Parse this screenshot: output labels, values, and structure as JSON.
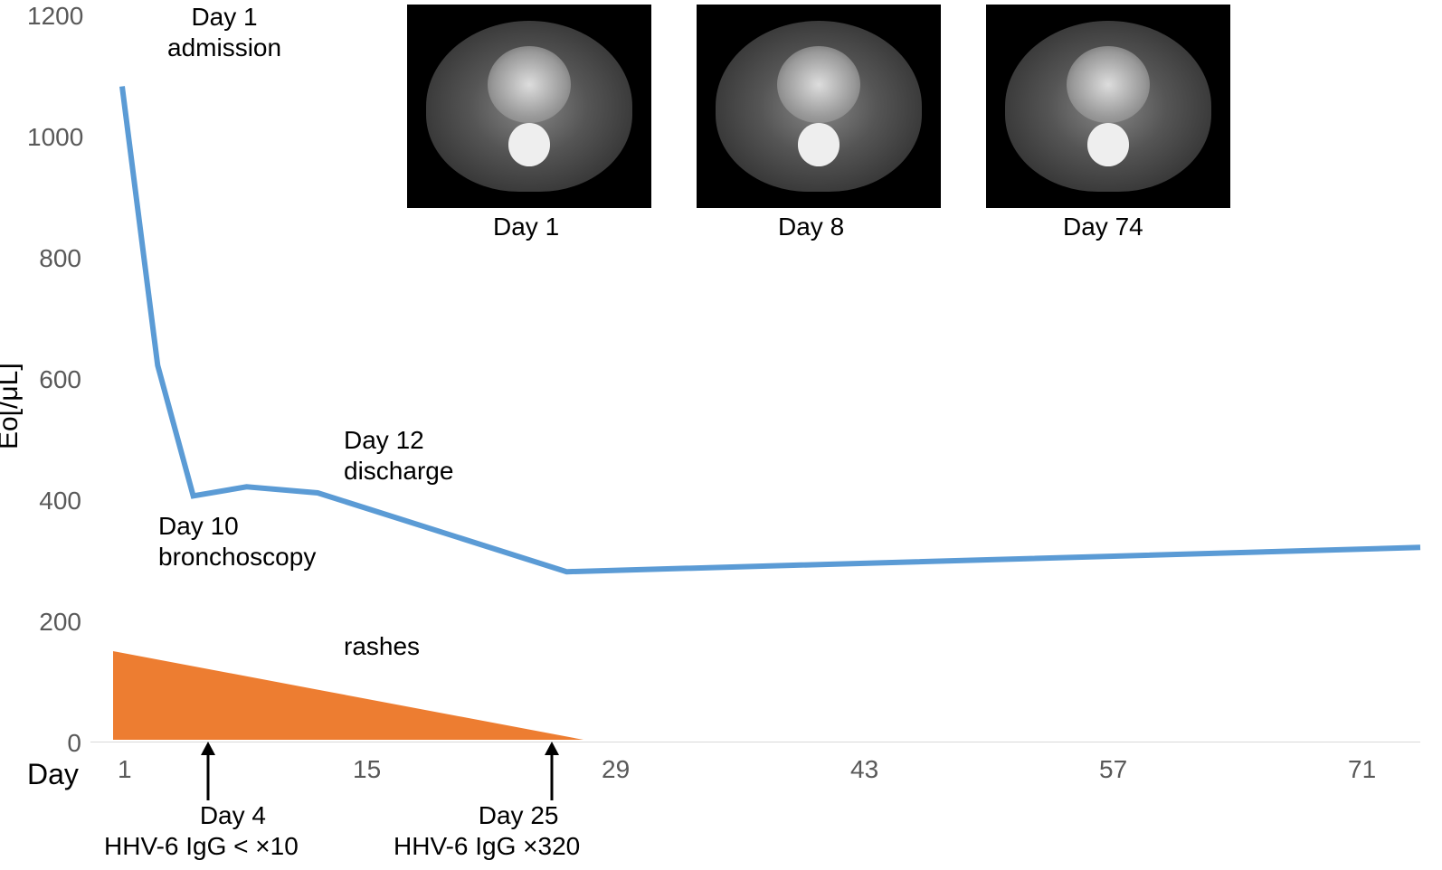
{
  "chart": {
    "type": "line",
    "y_axis_title": "Eo[/μL]",
    "x_axis_title": "Day",
    "y_ticks": [
      0,
      200,
      400,
      600,
      800,
      1000,
      1200
    ],
    "x_ticks": [
      1,
      15,
      29,
      43,
      57,
      71
    ],
    "ylim": [
      0,
      1200
    ],
    "xlim": [
      1,
      74
    ],
    "line_color": "#5b9bd5",
    "line_width": 6,
    "background_color": "#ffffff",
    "grid_color": "#d9d9d9",
    "data_points": [
      {
        "x": 1,
        "y": 1080
      },
      {
        "x": 3,
        "y": 620
      },
      {
        "x": 5,
        "y": 405
      },
      {
        "x": 8,
        "y": 420
      },
      {
        "x": 12,
        "y": 410
      },
      {
        "x": 26,
        "y": 280
      },
      {
        "x": 74,
        "y": 320
      }
    ]
  },
  "rashes_triangle": {
    "label": "rashes",
    "fill_color": "#ed7d31",
    "start_day": 1,
    "end_day": 27,
    "start_height": 115,
    "end_height": 0
  },
  "annotations": {
    "day1_admission_line1": "Day 1",
    "day1_admission_line2": "admission",
    "day10_line1": "Day 10",
    "day10_line2": "bronchoscopy",
    "day12_line1": "Day 12",
    "day12_line2": "discharge",
    "day4_line1": "Day 4",
    "day4_line2": "HHV-6  IgG < ×10",
    "day25_line1": "Day 25",
    "day25_line2": "HHV-6  IgG  ×320"
  },
  "ct_images": {
    "img1_label": "Day 1",
    "img2_label": "Day 8",
    "img3_label": "Day 74"
  },
  "styling": {
    "annotation_fontsize": 28,
    "axis_label_fontsize": 28,
    "axis_label_color": "#595959",
    "title_fontsize": 30,
    "text_color": "#000000"
  }
}
